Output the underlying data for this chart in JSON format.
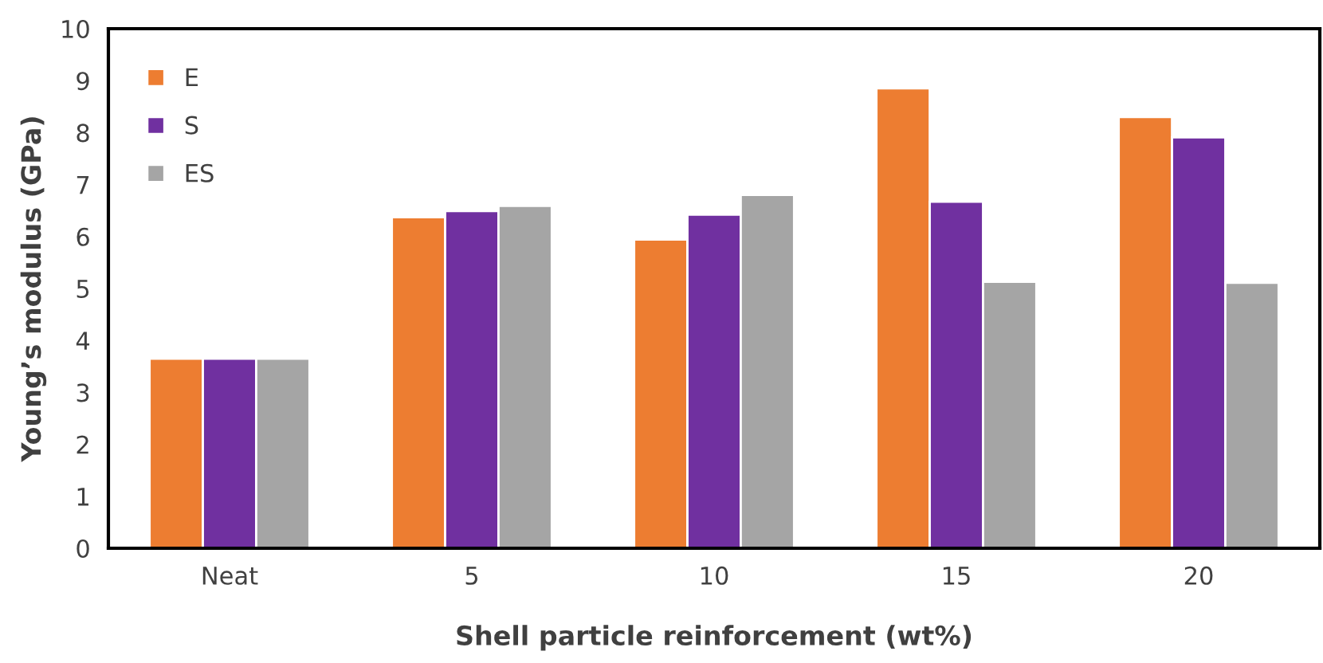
{
  "chart_data": {
    "type": "bar",
    "xlabel": "Shell particle reinforcement (wt%)",
    "ylabel": "Young’s modulus (GPa)",
    "categories": [
      "Neat",
      "5",
      "10",
      "15",
      "20"
    ],
    "series": [
      {
        "name": "E",
        "color": "#ed7d31",
        "values": [
          3.65,
          6.37,
          5.94,
          8.85,
          8.3
        ]
      },
      {
        "name": "S",
        "color": "#7030a0",
        "values": [
          3.65,
          6.49,
          6.42,
          6.67,
          7.91
        ]
      },
      {
        "name": "ES",
        "color": "#a5a5a5",
        "values": [
          3.65,
          6.59,
          6.8,
          5.13,
          5.11
        ]
      }
    ],
    "ylim": [
      0,
      10
    ],
    "yticks": [
      0,
      1,
      2,
      3,
      4,
      5,
      6,
      7,
      8,
      9,
      10
    ],
    "grid": false,
    "legend": "top left"
  }
}
